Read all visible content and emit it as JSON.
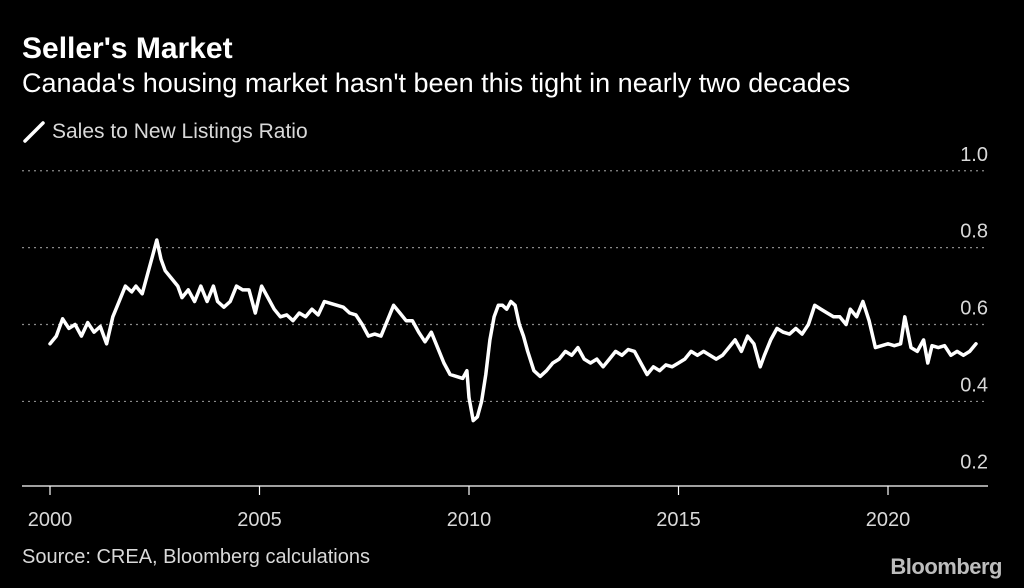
{
  "header": {
    "title": "Seller's Market",
    "subtitle": "Canada's housing market hasn't been this tight in nearly two decades"
  },
  "legend": {
    "label": "Sales to New Listings Ratio"
  },
  "footer": {
    "source": "Source: CREA, Bloomberg calculations",
    "brand": "Bloomberg"
  },
  "colors": {
    "background": "#000000",
    "line": "#ffffff",
    "grid": "#8a8a8a",
    "text": "#d9d9d9"
  },
  "chart_data": {
    "type": "line",
    "x_axis": {
      "ticks": [
        2000,
        2005,
        2010,
        2015,
        2020
      ],
      "range": [
        1999.7,
        2022.2
      ]
    },
    "y_axis": {
      "ticks": [
        "0.2",
        "0.4",
        "0.6",
        "0.8",
        "1.0"
      ],
      "range": [
        0.18,
        1.08
      ],
      "position": "right"
    },
    "grid": "horizontal-dotted",
    "series": [
      {
        "name": "Sales to New Listings Ratio",
        "points": [
          [
            2000.0,
            0.55
          ],
          [
            2000.15,
            0.57
          ],
          [
            2000.3,
            0.615
          ],
          [
            2000.45,
            0.59
          ],
          [
            2000.6,
            0.6
          ],
          [
            2000.75,
            0.57
          ],
          [
            2000.9,
            0.605
          ],
          [
            2001.05,
            0.58
          ],
          [
            2001.2,
            0.595
          ],
          [
            2001.35,
            0.55
          ],
          [
            2001.5,
            0.62
          ],
          [
            2001.65,
            0.66
          ],
          [
            2001.8,
            0.7
          ],
          [
            2001.95,
            0.685
          ],
          [
            2002.05,
            0.7
          ],
          [
            2002.2,
            0.68
          ],
          [
            2002.35,
            0.74
          ],
          [
            2002.45,
            0.78
          ],
          [
            2002.55,
            0.82
          ],
          [
            2002.65,
            0.77
          ],
          [
            2002.75,
            0.74
          ],
          [
            2002.9,
            0.72
          ],
          [
            2003.05,
            0.7
          ],
          [
            2003.15,
            0.67
          ],
          [
            2003.3,
            0.69
          ],
          [
            2003.45,
            0.66
          ],
          [
            2003.6,
            0.7
          ],
          [
            2003.75,
            0.66
          ],
          [
            2003.9,
            0.7
          ],
          [
            2004.0,
            0.66
          ],
          [
            2004.15,
            0.645
          ],
          [
            2004.3,
            0.66
          ],
          [
            2004.45,
            0.7
          ],
          [
            2004.6,
            0.69
          ],
          [
            2004.75,
            0.69
          ],
          [
            2004.9,
            0.63
          ],
          [
            2005.05,
            0.7
          ],
          [
            2005.2,
            0.67
          ],
          [
            2005.35,
            0.64
          ],
          [
            2005.5,
            0.62
          ],
          [
            2005.65,
            0.625
          ],
          [
            2005.8,
            0.61
          ],
          [
            2005.95,
            0.63
          ],
          [
            2006.1,
            0.62
          ],
          [
            2006.25,
            0.64
          ],
          [
            2006.4,
            0.625
          ],
          [
            2006.55,
            0.66
          ],
          [
            2006.7,
            0.655
          ],
          [
            2006.85,
            0.65
          ],
          [
            2007.0,
            0.645
          ],
          [
            2007.15,
            0.63
          ],
          [
            2007.3,
            0.625
          ],
          [
            2007.45,
            0.6
          ],
          [
            2007.6,
            0.57
          ],
          [
            2007.75,
            0.575
          ],
          [
            2007.9,
            0.57
          ],
          [
            2008.05,
            0.61
          ],
          [
            2008.2,
            0.65
          ],
          [
            2008.35,
            0.63
          ],
          [
            2008.5,
            0.61
          ],
          [
            2008.65,
            0.61
          ],
          [
            2008.8,
            0.58
          ],
          [
            2008.95,
            0.555
          ],
          [
            2009.1,
            0.58
          ],
          [
            2009.25,
            0.54
          ],
          [
            2009.4,
            0.5
          ],
          [
            2009.55,
            0.47
          ],
          [
            2009.7,
            0.465
          ],
          [
            2009.85,
            0.46
          ],
          [
            2009.95,
            0.48
          ],
          [
            2010.0,
            0.41
          ],
          [
            2010.1,
            0.35
          ],
          [
            2010.2,
            0.36
          ],
          [
            2010.3,
            0.4
          ],
          [
            2010.4,
            0.47
          ],
          [
            2010.5,
            0.56
          ],
          [
            2010.6,
            0.62
          ],
          [
            2010.7,
            0.65
          ],
          [
            2010.8,
            0.65
          ],
          [
            2010.9,
            0.64
          ],
          [
            2011.0,
            0.66
          ],
          [
            2011.1,
            0.65
          ],
          [
            2011.2,
            0.6
          ],
          [
            2011.3,
            0.57
          ],
          [
            2011.4,
            0.53
          ],
          [
            2011.55,
            0.48
          ],
          [
            2011.7,
            0.465
          ],
          [
            2011.85,
            0.48
          ],
          [
            2012.0,
            0.5
          ],
          [
            2012.15,
            0.51
          ],
          [
            2012.3,
            0.53
          ],
          [
            2012.45,
            0.52
          ],
          [
            2012.6,
            0.54
          ],
          [
            2012.75,
            0.51
          ],
          [
            2012.9,
            0.5
          ],
          [
            2013.05,
            0.51
          ],
          [
            2013.2,
            0.49
          ],
          [
            2013.35,
            0.51
          ],
          [
            2013.5,
            0.53
          ],
          [
            2013.65,
            0.52
          ],
          [
            2013.8,
            0.535
          ],
          [
            2013.95,
            0.53
          ],
          [
            2014.1,
            0.5
          ],
          [
            2014.25,
            0.47
          ],
          [
            2014.4,
            0.49
          ],
          [
            2014.55,
            0.48
          ],
          [
            2014.7,
            0.495
          ],
          [
            2014.85,
            0.49
          ],
          [
            2015.0,
            0.5
          ],
          [
            2015.15,
            0.51
          ],
          [
            2015.3,
            0.53
          ],
          [
            2015.45,
            0.52
          ],
          [
            2015.6,
            0.53
          ],
          [
            2015.75,
            0.52
          ],
          [
            2015.9,
            0.51
          ],
          [
            2016.05,
            0.52
          ],
          [
            2016.2,
            0.54
          ],
          [
            2016.35,
            0.56
          ],
          [
            2016.5,
            0.53
          ],
          [
            2016.65,
            0.57
          ],
          [
            2016.8,
            0.55
          ],
          [
            2016.95,
            0.49
          ],
          [
            2017.05,
            0.52
          ],
          [
            2017.2,
            0.56
          ],
          [
            2017.35,
            0.59
          ],
          [
            2017.5,
            0.58
          ],
          [
            2017.65,
            0.575
          ],
          [
            2017.8,
            0.59
          ],
          [
            2017.95,
            0.575
          ],
          [
            2018.1,
            0.6
          ],
          [
            2018.25,
            0.65
          ],
          [
            2018.4,
            0.64
          ],
          [
            2018.55,
            0.63
          ],
          [
            2018.7,
            0.62
          ],
          [
            2018.85,
            0.62
          ],
          [
            2019.0,
            0.6
          ],
          [
            2019.1,
            0.64
          ],
          [
            2019.25,
            0.62
          ],
          [
            2019.4,
            0.66
          ],
          [
            2019.55,
            0.61
          ],
          [
            2019.7,
            0.54
          ],
          [
            2019.85,
            0.545
          ],
          [
            2020.0,
            0.55
          ],
          [
            2020.15,
            0.545
          ],
          [
            2020.3,
            0.55
          ],
          [
            2020.4,
            0.62
          ],
          [
            2020.55,
            0.54
          ],
          [
            2020.7,
            0.53
          ],
          [
            2020.85,
            0.56
          ],
          [
            2020.95,
            0.5
          ],
          [
            2021.05,
            0.545
          ],
          [
            2021.2,
            0.54
          ],
          [
            2021.35,
            0.545
          ],
          [
            2021.5,
            0.52
          ],
          [
            2021.65,
            0.53
          ],
          [
            2021.8,
            0.52
          ],
          [
            2021.95,
            0.53
          ],
          [
            2022.1,
            0.55
          ]
        ]
      }
    ]
  }
}
